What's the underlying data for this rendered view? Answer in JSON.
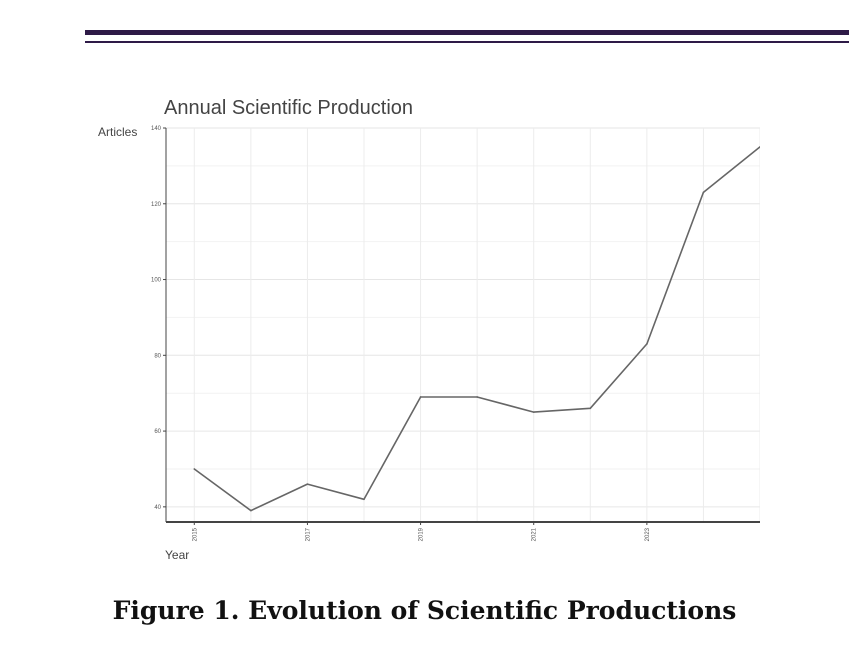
{
  "chart_data": {
    "type": "line",
    "title": "Annual Scientific Production",
    "xlabel": "Year",
    "ylabel": "Articles",
    "x": [
      2015,
      2016,
      2017,
      2018,
      2019,
      2020,
      2021,
      2022,
      2023,
      2024,
      2025
    ],
    "values": [
      50,
      39,
      46,
      42,
      69,
      69,
      65,
      66,
      83,
      123,
      135
    ],
    "xticks": [
      "2015",
      "2017",
      "2019",
      "2021",
      "2023"
    ],
    "yticks": [
      40,
      60,
      80,
      100,
      120,
      140
    ],
    "ylim": [
      36,
      140
    ],
    "xlim": [
      2014.5,
      2025
    ],
    "grid": true,
    "line_color": "#666666"
  },
  "caption": "Figure 1. Evolution of Scientific Productions"
}
